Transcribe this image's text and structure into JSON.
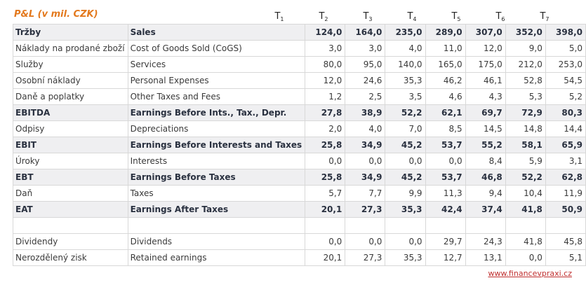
{
  "title": "P&L (v mil. CZK)",
  "periods": [
    "T1",
    "T2",
    "T3",
    "T4",
    "T5",
    "T6",
    "T7"
  ],
  "rows": [
    {
      "cz": "Tržby",
      "en": "Sales",
      "bold": true,
      "v": [
        "124,0",
        "164,0",
        "235,0",
        "289,0",
        "307,0",
        "352,0",
        "398,0"
      ]
    },
    {
      "cz": "Náklady na prodané zboží",
      "en": "Cost of Goods Sold (CoGS)",
      "bold": false,
      "v": [
        "3,0",
        "3,0",
        "4,0",
        "11,0",
        "12,0",
        "9,0",
        "5,0"
      ]
    },
    {
      "cz": "Služby",
      "en": "Services",
      "bold": false,
      "v": [
        "80,0",
        "95,0",
        "140,0",
        "165,0",
        "175,0",
        "212,0",
        "253,0"
      ]
    },
    {
      "cz": "Osobní náklady",
      "en": "Personal Expenses",
      "bold": false,
      "v": [
        "12,0",
        "24,6",
        "35,3",
        "46,2",
        "46,1",
        "52,8",
        "54,5"
      ]
    },
    {
      "cz": "Daně a poplatky",
      "en": "Other Taxes and Fees",
      "bold": false,
      "v": [
        "1,2",
        "2,5",
        "3,5",
        "4,6",
        "4,3",
        "5,3",
        "5,2"
      ]
    },
    {
      "cz": "EBITDA",
      "en": "Earnings Before Ints., Tax., Depr.",
      "bold": true,
      "v": [
        "27,8",
        "38,9",
        "52,2",
        "62,1",
        "69,7",
        "72,9",
        "80,3"
      ]
    },
    {
      "cz": "Odpisy",
      "en": "Depreciations",
      "bold": false,
      "v": [
        "2,0",
        "4,0",
        "7,0",
        "8,5",
        "14,5",
        "14,8",
        "14,4"
      ]
    },
    {
      "cz": "EBIT",
      "en": "Earnings Before Interests and Taxes",
      "bold": true,
      "v": [
        "25,8",
        "34,9",
        "45,2",
        "53,7",
        "55,2",
        "58,1",
        "65,9"
      ]
    },
    {
      "cz": "Úroky",
      "en": "Interests",
      "bold": false,
      "v": [
        "0,0",
        "0,0",
        "0,0",
        "0,0",
        "8,4",
        "5,9",
        "3,1"
      ]
    },
    {
      "cz": "EBT",
      "en": "Earnings Before Taxes",
      "bold": true,
      "v": [
        "25,8",
        "34,9",
        "45,2",
        "53,7",
        "46,8",
        "52,2",
        "62,8"
      ]
    },
    {
      "cz": "Daň",
      "en": "Taxes",
      "bold": false,
      "v": [
        "5,7",
        "7,7",
        "9,9",
        "11,3",
        "9,4",
        "10,4",
        "11,9"
      ]
    },
    {
      "cz": "EAT",
      "en": "Earnings After Taxes",
      "bold": true,
      "v": [
        "20,1",
        "27,3",
        "35,3",
        "42,4",
        "37,4",
        "41,8",
        "50,9"
      ]
    },
    {
      "cz": "",
      "en": "",
      "bold": false,
      "blank": true,
      "v": [
        "",
        "",
        "",
        "",
        "",
        "",
        ""
      ]
    },
    {
      "cz": "Dividendy",
      "en": "Dividends",
      "bold": false,
      "v": [
        "0,0",
        "0,0",
        "0,0",
        "29,7",
        "24,3",
        "41,8",
        "45,8"
      ]
    },
    {
      "cz": "Nerozdělený zisk",
      "en": "Retained earnings",
      "bold": false,
      "v": [
        "20,1",
        "27,3",
        "35,3",
        "12,7",
        "13,1",
        "0,0",
        "5,1"
      ]
    }
  ],
  "footer_link": "www.financevpraxi.cz"
}
